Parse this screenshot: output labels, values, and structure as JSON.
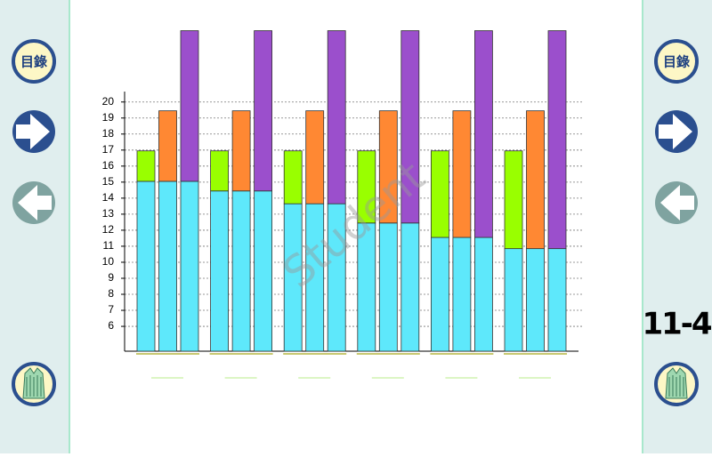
{
  "nav": {
    "toc_label": "目錄"
  },
  "page_number": "11-4",
  "watermark": "Student",
  "chart_data": {
    "type": "grouped-stacked-bar",
    "categories": [
      null,
      null,
      null,
      null,
      null,
      null
    ],
    "bars": [
      {
        "segments": [
          {
            "color": "#5ee8fb",
            "values": [
              10.6,
              10,
              9.2,
              8,
              7.1,
              6.4
            ]
          },
          {
            "color": "#99ff00",
            "values": [
              1.9,
              2.5,
              3.3,
              4.5,
              5.4,
              6.1
            ]
          }
        ]
      },
      {
        "segments": [
          {
            "color": "#5ee8fb",
            "values": [
              10.6,
              10,
              9.2,
              8,
              7.1,
              6.4
            ]
          },
          {
            "color": "#ff8833",
            "values": [
              4.4,
              5,
              5.8,
              7,
              7.9,
              8.6
            ]
          }
        ]
      },
      {
        "segments": [
          {
            "color": "#5ee8fb",
            "values": [
              10.6,
              10,
              9.2,
              8,
              7.1,
              6.4
            ]
          },
          {
            "color": "#9b4fcc",
            "values": [
              9.4,
              10,
              10.8,
              12,
              12.9,
              13.6
            ]
          }
        ]
      }
    ],
    "ylim": [
      4.45,
      20.65
    ],
    "yticks": [
      6,
      7,
      8,
      9,
      10,
      11,
      12,
      13,
      14,
      15,
      16,
      17,
      18,
      19,
      20
    ],
    "grid": true
  }
}
